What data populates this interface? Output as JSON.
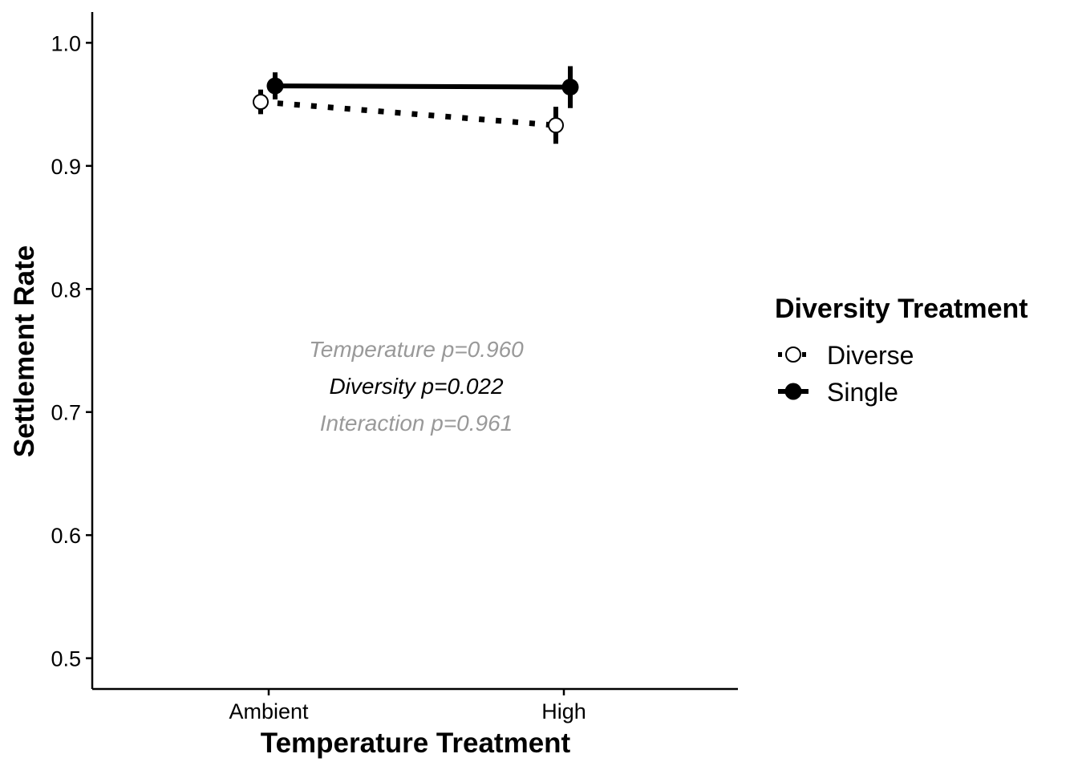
{
  "chart_data": {
    "type": "line",
    "categories": [
      "Ambient",
      "High"
    ],
    "xlabel": "Temperature Treatment",
    "ylabel": "Settlement Rate",
    "ylim": [
      0.475,
      1.025
    ],
    "yticks": [
      "0.5",
      "0.6",
      "0.7",
      "0.8",
      "0.9",
      "1.0"
    ],
    "grid": false,
    "legend": {
      "title": "Diversity Treatment",
      "placement": "right"
    },
    "series": [
      {
        "name": "Diverse",
        "values": [
          0.952,
          0.933
        ],
        "error_low": [
          0.942,
          0.918
        ],
        "error_high": [
          0.962,
          0.948
        ],
        "marker": "open-circle",
        "line": "dotted"
      },
      {
        "name": "Single",
        "values": [
          0.965,
          0.964
        ],
        "error_low": [
          0.954,
          0.947
        ],
        "error_high": [
          0.976,
          0.981
        ],
        "marker": "filled-circle",
        "line": "solid"
      }
    ],
    "annotations": [
      {
        "text": "Temperature p=0.960",
        "color": "#999999"
      },
      {
        "text": "Diversity p=0.022",
        "color": "#000000"
      },
      {
        "text": "Interaction p=0.961",
        "color": "#999999"
      }
    ]
  }
}
